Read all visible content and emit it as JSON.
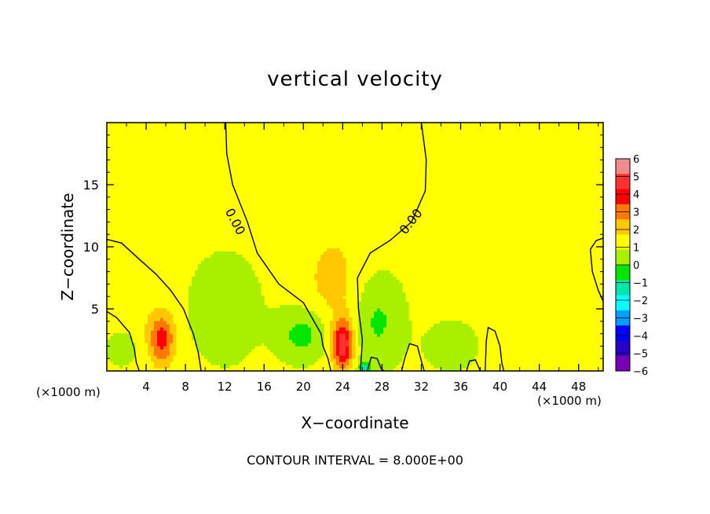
{
  "figure": {
    "title": "vertical velocity",
    "xlabel": "X−coordinate",
    "ylabel": "Z−coordinate",
    "x_unit_left": "(×1000 m)",
    "x_unit_right": "(×1000 m)",
    "footer": "CONTOUR INTERVAL = 8.000E+00"
  },
  "chart_data": {
    "type": "heatmap",
    "title": "vertical velocity",
    "xlabel": "X−coordinate",
    "ylabel": "Z−coordinate",
    "xlim": [
      0,
      50.5
    ],
    "ylim": [
      0,
      20
    ],
    "x_ticks": [
      4,
      8,
      12,
      16,
      20,
      24,
      28,
      32,
      36,
      40,
      44,
      48
    ],
    "x_tick_labels": [
      "4",
      "8",
      "12",
      "16",
      "20",
      "24",
      "28",
      "32",
      "36",
      "40",
      "44",
      "48"
    ],
    "y_ticks": [
      5,
      10,
      15
    ],
    "y_tick_labels": [
      "5",
      "10",
      "15"
    ],
    "background_value": 0.3,
    "field_features": [
      {
        "kind": "updraft",
        "x": 5.6,
        "z": 2.6,
        "peak": 3.2,
        "sx": 0.9,
        "sz": 1.4
      },
      {
        "kind": "updraft",
        "x": 24.0,
        "z": 2.2,
        "peak": 4.7,
        "sx": 0.7,
        "sz": 1.3
      },
      {
        "kind": "updraft",
        "x": 23.0,
        "z": 7.0,
        "peak": 1.0,
        "sx": 2.2,
        "sz": 3.5
      },
      {
        "kind": "updraft",
        "x": 2.0,
        "z": 6.0,
        "peak": 0.6,
        "sx": 2.0,
        "sz": 3.0
      },
      {
        "kind": "downdraft",
        "x": 20.0,
        "z": 3.0,
        "peak": -1.8,
        "sx": 1.8,
        "sz": 1.5
      },
      {
        "kind": "downdraft",
        "x": 27.5,
        "z": 4.0,
        "peak": -1.5,
        "sx": 1.8,
        "sz": 2.5
      },
      {
        "kind": "downdraft",
        "x": 12.0,
        "z": 5.0,
        "peak": -1.0,
        "sx": 2.5,
        "sz": 3.0
      },
      {
        "kind": "downdraft",
        "x": 26.2,
        "z": 0.3,
        "peak": -2.5,
        "sx": 0.4,
        "sz": 0.4
      },
      {
        "kind": "downdraft",
        "x": 1.5,
        "z": 2.0,
        "peak": -1.0,
        "sx": 1.2,
        "sz": 1.2
      },
      {
        "kind": "downdraft",
        "x": 35.0,
        "z": 2.0,
        "peak": -0.8,
        "sx": 2.0,
        "sz": 1.5
      }
    ],
    "contours": [
      {
        "level": 0.0,
        "label": "0.00",
        "label_position": [
          13.0,
          12.0
        ],
        "points": [
          [
            12.1,
            20
          ],
          [
            12.2,
            17.5
          ],
          [
            12.8,
            15
          ],
          [
            14.3,
            12
          ],
          [
            15.3,
            9.5
          ],
          [
            17.5,
            7
          ],
          [
            20.0,
            5.5
          ],
          [
            21.8,
            3.0
          ],
          [
            22.0,
            2.0
          ],
          [
            22.5,
            1.0
          ],
          [
            22.8,
            0
          ]
        ]
      },
      {
        "level": 0.0,
        "label": "0.00",
        "label_position": [
          31.0,
          12.0
        ],
        "points": [
          [
            32.0,
            20
          ],
          [
            32.5,
            17
          ],
          [
            32.4,
            14.5
          ],
          [
            31.0,
            12.0
          ],
          [
            28.8,
            10.5
          ],
          [
            26.8,
            9.5
          ],
          [
            25.5,
            7.5
          ],
          [
            25.6,
            5
          ],
          [
            26.0,
            2.5
          ],
          [
            25.8,
            0
          ]
        ]
      },
      {
        "level": 0.0,
        "label": "",
        "points": [
          [
            0,
            10.6
          ],
          [
            1.5,
            10.3
          ],
          [
            3.3,
            9.0
          ],
          [
            5.0,
            7.8
          ],
          [
            6.5,
            6.5
          ],
          [
            7.8,
            5.0
          ],
          [
            8.8,
            3.0
          ],
          [
            9.3,
            1.5
          ],
          [
            9.6,
            0
          ]
        ]
      },
      {
        "level": 0.0,
        "label": "",
        "points": [
          [
            0,
            4.8
          ],
          [
            1.0,
            4.3
          ],
          [
            2.3,
            3.1
          ],
          [
            2.8,
            1.8
          ],
          [
            3.0,
            0.7
          ],
          [
            3.3,
            0
          ]
        ]
      },
      {
        "level": 0.0,
        "label": "",
        "points": [
          [
            50.5,
            10.7
          ],
          [
            49.8,
            10.5
          ],
          [
            49.2,
            9.8
          ],
          [
            49.4,
            8.0
          ],
          [
            50.0,
            6.5
          ],
          [
            50.5,
            5.6
          ]
        ]
      },
      {
        "level": 0.0,
        "label": "",
        "points": [
          [
            38.5,
            0
          ],
          [
            38.6,
            2.4
          ],
          [
            38.8,
            3.5
          ],
          [
            39.5,
            3.2
          ],
          [
            40.0,
            2.0
          ],
          [
            40.2,
            0.6
          ],
          [
            40.4,
            0
          ]
        ]
      },
      {
        "level": 0.0,
        "label": "",
        "points": [
          [
            30.0,
            0
          ],
          [
            30.3,
            1.0
          ],
          [
            30.8,
            2.2
          ],
          [
            31.6,
            2.0
          ],
          [
            32.0,
            0.8
          ],
          [
            32.3,
            0
          ]
        ]
      },
      {
        "level": 0.0,
        "label": "",
        "points": [
          [
            26.5,
            0
          ],
          [
            26.9,
            1.1
          ],
          [
            27.5,
            1.0
          ],
          [
            27.9,
            0.2
          ],
          [
            28.2,
            0
          ]
        ]
      },
      {
        "level": 0.0,
        "label": "",
        "points": [
          [
            36.6,
            0
          ],
          [
            36.9,
            0.8
          ],
          [
            37.5,
            0.9
          ],
          [
            38.0,
            0
          ]
        ]
      }
    ],
    "colorbar": {
      "levels": [
        6,
        5,
        4,
        3,
        2,
        1,
        0,
        -1,
        -2,
        -3,
        -4,
        -5,
        -6
      ],
      "labels": [
        "6",
        "5",
        "4",
        "3",
        "2",
        "1",
        "0",
        "−1",
        "−2",
        "−3",
        "−4",
        "−5",
        "−6"
      ],
      "colors": [
        "#f08c8c",
        "#ff3030",
        "#ff0000",
        "#ff7800",
        "#ffc800",
        "#ffff00",
        "#a8f000",
        "#00e600",
        "#00e6aa",
        "#00ffff",
        "#00a0ff",
        "#0000ff",
        "#2800c8",
        "#7800b4"
      ]
    }
  }
}
